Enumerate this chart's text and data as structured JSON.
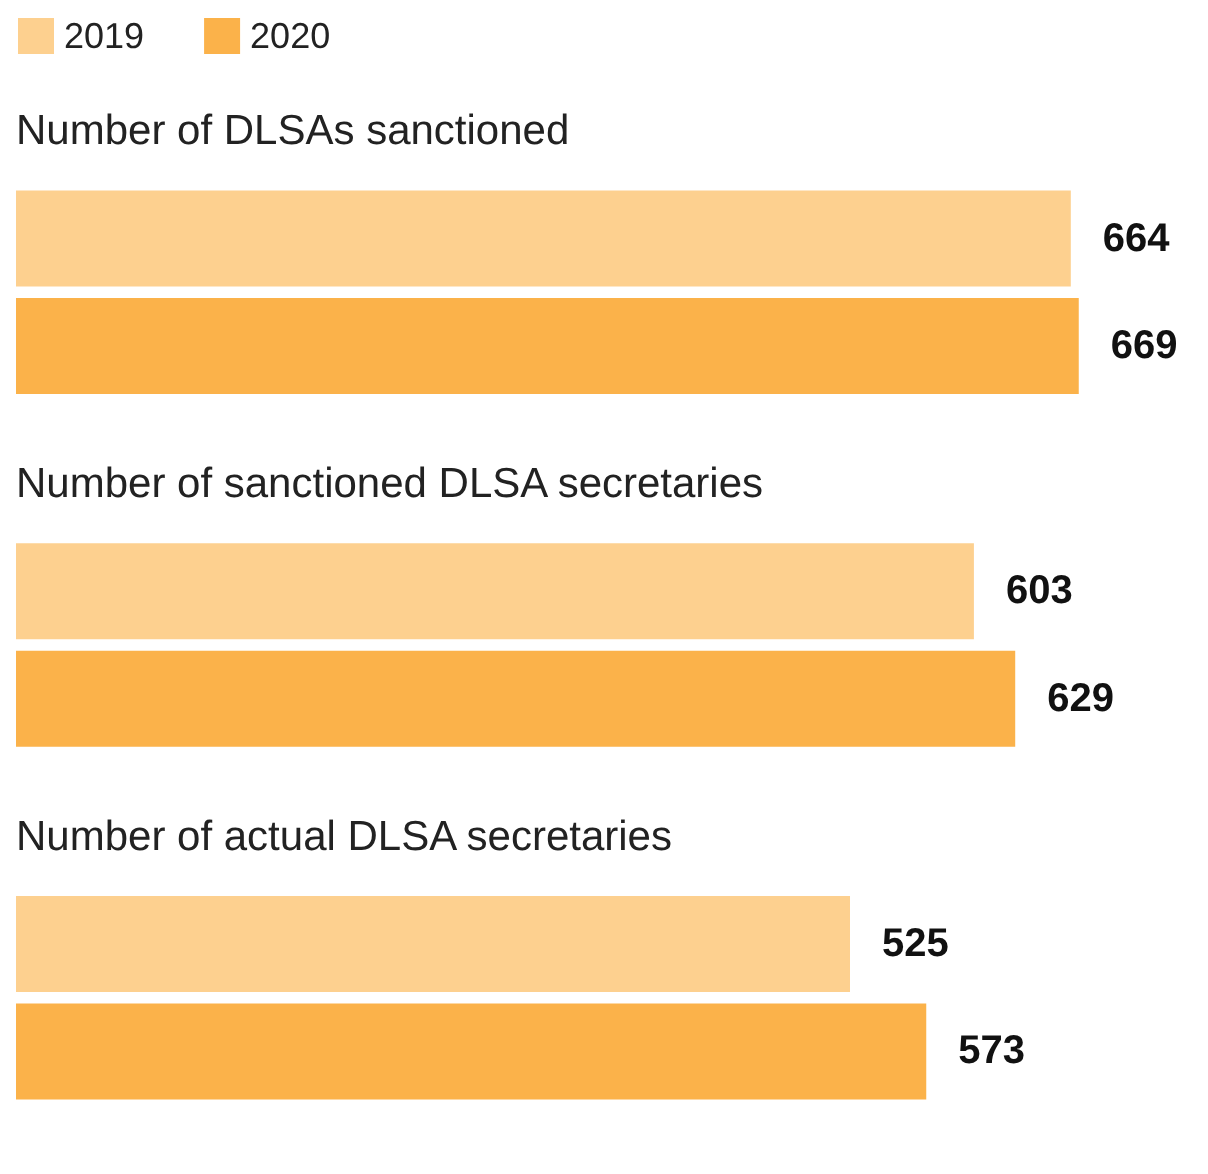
{
  "chart_data": {
    "type": "bar",
    "orientation": "horizontal",
    "categories": [
      "Number of DLSAs sanctioned",
      "Number of sanctioned DLSA secretaries",
      "Number of actual DLSA secretaries"
    ],
    "series": [
      {
        "name": "2019",
        "color": "#fdd08f",
        "values": [
          664,
          603,
          525
        ]
      },
      {
        "name": "2020",
        "color": "#fbb24a",
        "values": [
          669,
          629,
          573
        ]
      }
    ],
    "data_labels": true,
    "legend": "top left"
  }
}
